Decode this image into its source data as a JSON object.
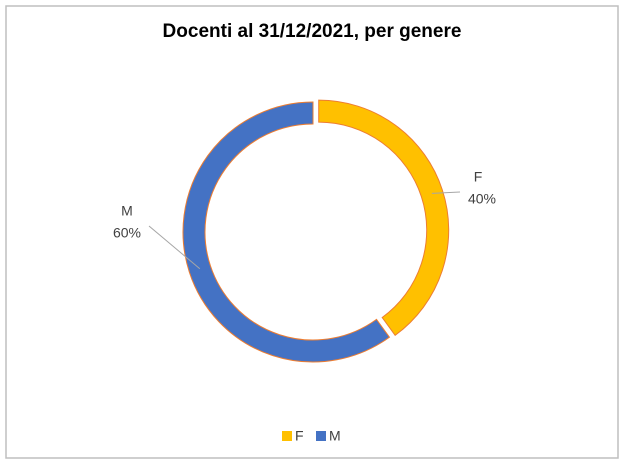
{
  "chart_data": {
    "type": "pie",
    "donut": true,
    "title": "Docenti al 31/12/2021, per genere",
    "categories": [
      "F",
      "M"
    ],
    "values": [
      40,
      60
    ],
    "value_labels": [
      "40%",
      "60%"
    ],
    "colors": [
      "#ffc000",
      "#4472c4"
    ],
    "legend": "bottom"
  }
}
